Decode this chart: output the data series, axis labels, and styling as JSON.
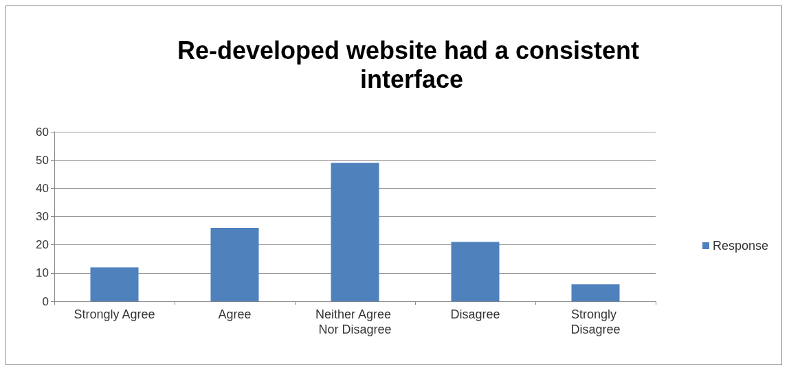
{
  "chart_data": {
    "type": "bar",
    "title": "Re-developed website had a consistent interface",
    "categories": [
      "Strongly Agree",
      "Agree",
      "Neither Agree Nor Disagree",
      "Disagree",
      "Strongly Disagree"
    ],
    "series": [
      {
        "name": "Response",
        "color": "#4f81bd",
        "values": [
          12,
          26,
          49,
          21,
          6
        ]
      }
    ],
    "ylim": [
      0,
      60
    ],
    "yticks": [
      0,
      10,
      20,
      30,
      40,
      50,
      60
    ],
    "grid": "y",
    "legend": "right"
  }
}
